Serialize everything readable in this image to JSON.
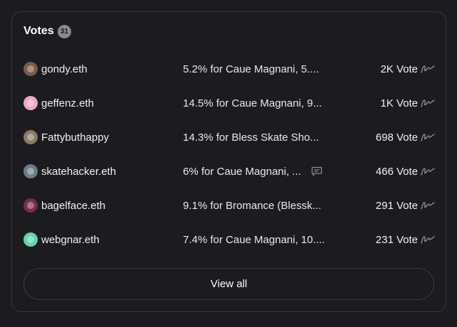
{
  "votes_panel": {
    "title": "Votes",
    "count": "31",
    "view_all_label": "View all",
    "rows": [
      {
        "voter": "gondy.eth",
        "reason": "5.2% for Caue Magnani, 5....",
        "votes": "2K Vote",
        "has_comment": false,
        "avatar_color": "#7a5a4a"
      },
      {
        "voter": "geffenz.eth",
        "reason": "14.5% for Caue Magnani, 9...",
        "votes": "1K Vote",
        "has_comment": false,
        "avatar_color": "#f2a6c7"
      },
      {
        "voter": "Fattybuthappy",
        "reason": "14.3% for Bless Skate Sho...",
        "votes": "698 Vote",
        "has_comment": false,
        "avatar_color": "#8b7a6a"
      },
      {
        "voter": "skatehacker.eth",
        "reason": "6% for Caue Magnani, ...",
        "votes": "466 Vote",
        "has_comment": true,
        "avatar_color": "#6a7d86"
      },
      {
        "voter": "bagelface.eth",
        "reason": "9.1% for Bromance (Blessk...",
        "votes": "291 Vote",
        "has_comment": false,
        "avatar_color": "#7b2a52"
      },
      {
        "voter": "webgnar.eth",
        "reason": "7.4% for Caue Magnani, 10....",
        "votes": "231 Vote",
        "has_comment": false,
        "avatar_color": "#5fd6a6"
      }
    ]
  },
  "icons": {
    "comment": "comment-icon",
    "signature": "signature-icon"
  }
}
